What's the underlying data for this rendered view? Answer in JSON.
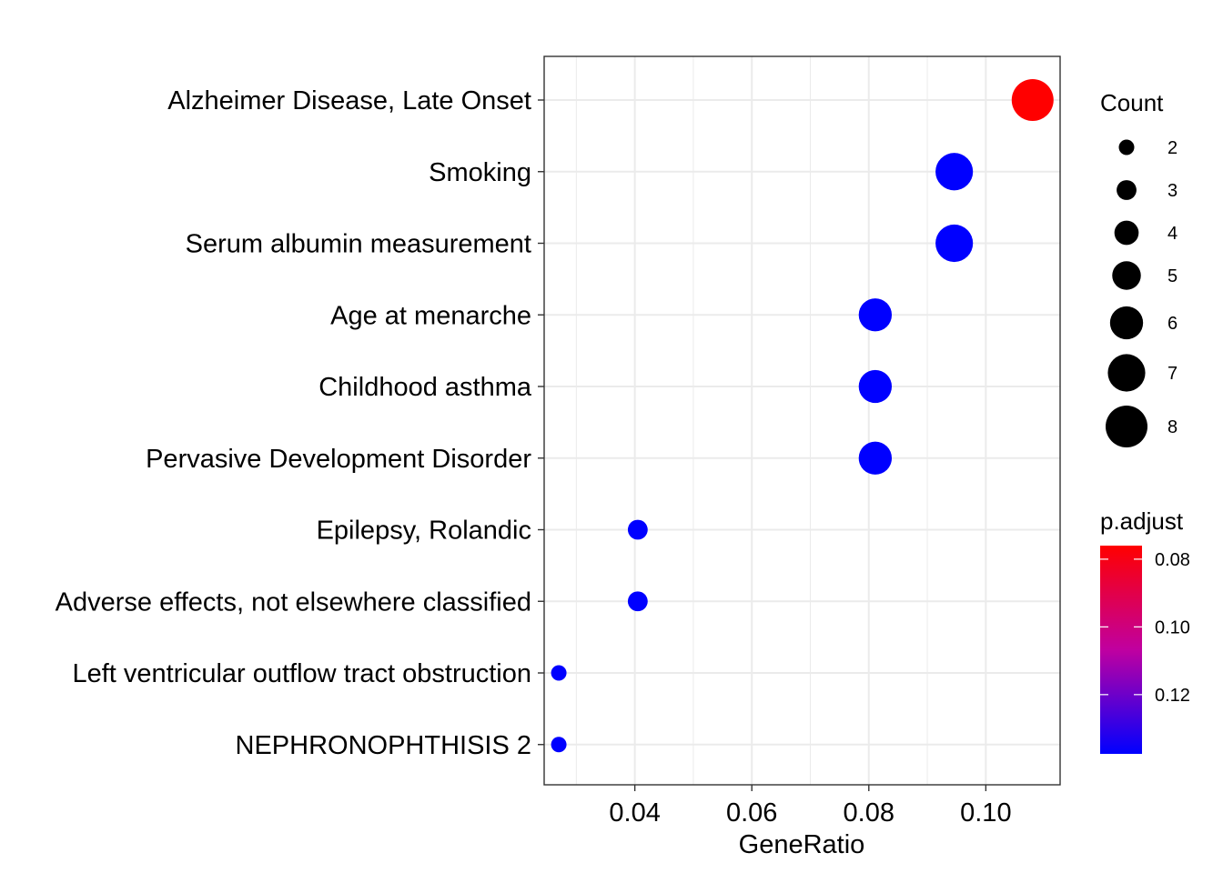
{
  "chart_data": {
    "type": "scatter",
    "xlabel": "GeneRatio",
    "ylabel": "",
    "xlim": [
      0.0245,
      0.1127
    ],
    "xticks": [
      0.04,
      0.06,
      0.08,
      0.1
    ],
    "xtick_labels": [
      "0.04",
      "0.06",
      "0.08",
      "0.10"
    ],
    "grid": true,
    "points": [
      {
        "label": "Alzheimer Disease, Late Onset",
        "x": 0.108,
        "count": 8,
        "p_adjust": 0.076
      },
      {
        "label": "Smoking",
        "x": 0.0946,
        "count": 7,
        "p_adjust": 0.1375
      },
      {
        "label": "Serum albumin measurement",
        "x": 0.0946,
        "count": 7,
        "p_adjust": 0.1375
      },
      {
        "label": "Age at menarche",
        "x": 0.0811,
        "count": 6,
        "p_adjust": 0.1375
      },
      {
        "label": "Childhood asthma",
        "x": 0.0811,
        "count": 6,
        "p_adjust": 0.1375
      },
      {
        "label": "Pervasive Development Disorder",
        "x": 0.0811,
        "count": 6,
        "p_adjust": 0.1375
      },
      {
        "label": "Epilepsy, Rolandic",
        "x": 0.0405,
        "count": 3,
        "p_adjust": 0.1375
      },
      {
        "label": "Adverse effects, not elsewhere classified",
        "x": 0.0405,
        "count": 3,
        "p_adjust": 0.1375
      },
      {
        "label": "Left ventricular outflow tract obstruction",
        "x": 0.027,
        "count": 2,
        "p_adjust": 0.1375
      },
      {
        "label": "NEPHRONOPHTHISIS 2",
        "x": 0.027,
        "count": 2,
        "p_adjust": 0.1375
      }
    ],
    "size_legend": {
      "title": "Count",
      "values": [
        2,
        3,
        4,
        5,
        6,
        7,
        8
      ],
      "labels": [
        "2",
        "3",
        "4",
        "5",
        "6",
        "7",
        "8"
      ]
    },
    "color_legend": {
      "title": "p.adjust",
      "min": 0.076,
      "max": 0.1375,
      "ticks": [
        0.08,
        0.1,
        0.12
      ],
      "tick_labels": [
        "0.08",
        "0.10",
        "0.12"
      ],
      "low_color": "#ff0000",
      "high_color": "#0000ff"
    },
    "colors": {
      "grid": "#ebebeb",
      "panel_border": "#333333",
      "text": "#000000"
    }
  }
}
